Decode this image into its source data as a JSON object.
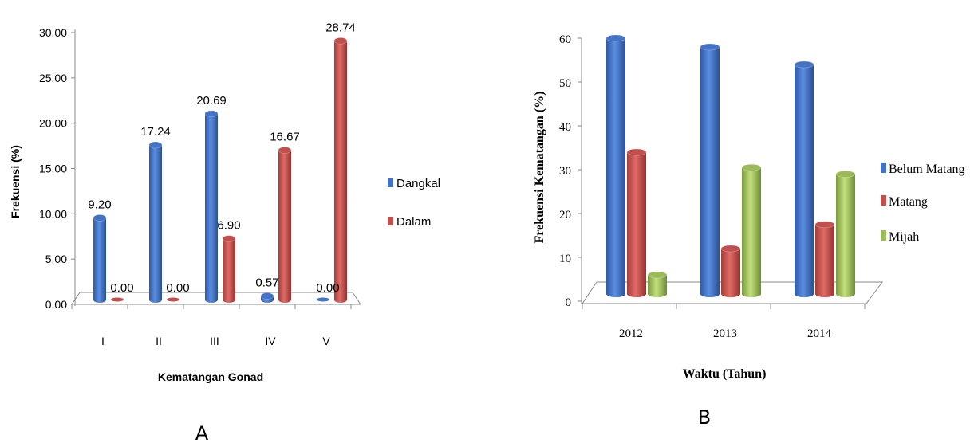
{
  "chart_data": [
    {
      "type": "bar",
      "panel_label": "A",
      "xlabel": "Kematangan Gonad",
      "ylabel": "Frekuensi (%)",
      "categories": [
        "I",
        "II",
        "III",
        "IV",
        "V"
      ],
      "series": [
        {
          "name": "Dangkal",
          "color": "#4472c4",
          "values": [
            9.2,
            17.24,
            20.69,
            0.57,
            0.0
          ]
        },
        {
          "name": "Dalam",
          "color": "#c0504d",
          "values": [
            0.0,
            0.0,
            6.9,
            16.67,
            28.74
          ]
        }
      ],
      "data_labels": [
        [
          "9.20",
          "17.24",
          "20.69",
          "0.57",
          "0.00"
        ],
        [
          "0.00",
          "0.00",
          "6.90",
          "16.67",
          "28.74"
        ]
      ],
      "yticks": [
        "0.00",
        "5.00",
        "10.00",
        "15.00",
        "20.00",
        "25.00",
        "30.00"
      ],
      "ylim": [
        0,
        30
      ],
      "legend_position": "right"
    },
    {
      "type": "bar",
      "panel_label": "B",
      "xlabel": "Waktu (Tahun)",
      "ylabel": "Frekuensi Kematangan (%)",
      "categories": [
        "2012",
        "2013",
        "2014"
      ],
      "series": [
        {
          "name": "Belum Matang",
          "color": "#4472c4",
          "values": [
            60,
            58,
            54
          ]
        },
        {
          "name": "Matang",
          "color": "#c0504d",
          "values": [
            34,
            12,
            17.5
          ]
        },
        {
          "name": "Mijah",
          "color": "#9bbb59",
          "values": [
            6,
            30.5,
            29
          ]
        }
      ],
      "yticks": [
        "0",
        "10",
        "20",
        "30",
        "40",
        "50",
        "60"
      ],
      "ylim": [
        0,
        60
      ],
      "legend_position": "right"
    }
  ]
}
